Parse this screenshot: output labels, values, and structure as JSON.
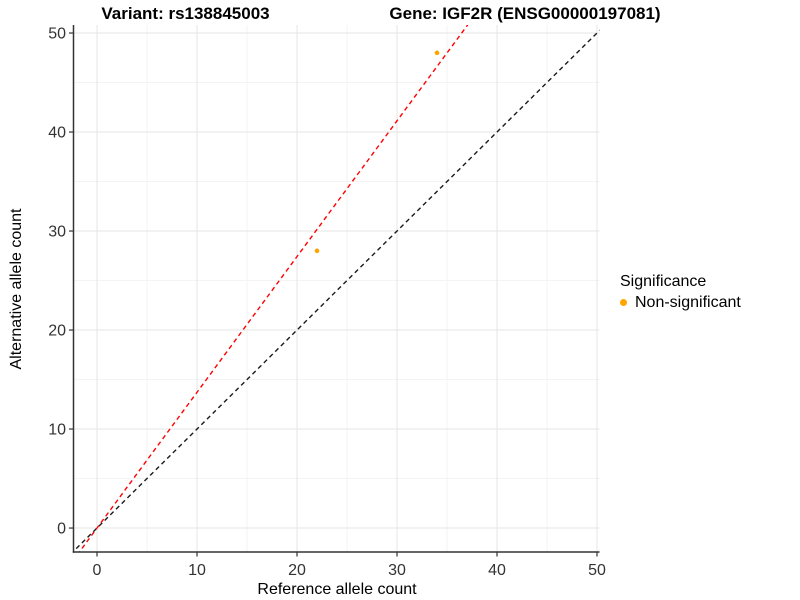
{
  "page": {
    "background": "#FFFFFF"
  },
  "titles": {
    "left": "Variant: rs138845003",
    "right": "Gene: IGF2R (ENSG00000197081)"
  },
  "legend": {
    "title": "Significance",
    "items": [
      {
        "label": "Non-significant",
        "color": "#FFA500"
      }
    ]
  },
  "chart_data": {
    "type": "scatter",
    "title_left": "Variant: rs138845003",
    "title_right": "Gene: IGF2R (ENSG00000197081)",
    "xlabel": "Reference allele count",
    "ylabel": "Alternative allele count",
    "xlim": [
      -2.35,
      50.25
    ],
    "ylim": [
      -2.42,
      50.81
    ],
    "x_ticks": [
      0,
      10,
      20,
      30,
      40,
      50
    ],
    "y_ticks": [
      0,
      10,
      20,
      30,
      40,
      50
    ],
    "x_minor_ticks": [
      5,
      15,
      25,
      35,
      45
    ],
    "y_minor_ticks": [
      5,
      15,
      25,
      35,
      45
    ],
    "grid": "major+minor",
    "legend_position": "right",
    "series": [
      {
        "name": "Non-significant",
        "type": "scatter",
        "x": [
          22,
          34
        ],
        "y": [
          28,
          48
        ],
        "color": "#FFA500",
        "marker_radius": 2.3
      }
    ],
    "lines": [
      {
        "name": "identity",
        "slope": 1,
        "intercept": 0,
        "color": "#1A1A1A",
        "style": "dashed"
      },
      {
        "name": "expected-ratio",
        "slope": 1.371,
        "intercept": 0,
        "color": "#FF0000",
        "style": "dashed"
      }
    ],
    "colors": {
      "grid_major": "#E5E5E5",
      "grid_minor": "#F2F2F2",
      "axis_line": "#333333",
      "tick_mark": "#333333",
      "tick_text": "#333333",
      "panel_background": "#FFFFFF"
    }
  }
}
